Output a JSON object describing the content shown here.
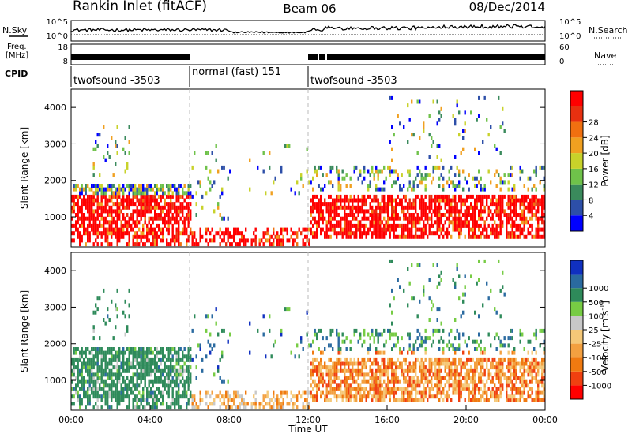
{
  "header": {
    "title": "Rankin Inlet (fitACF)",
    "beam": "Beam 06",
    "date": "08/Dec/2014"
  },
  "noise_panel": {
    "left_label": "N.Sky",
    "right_label": "N.Search",
    "ticks_left": [
      "10^5",
      "10^0"
    ],
    "ticks_right": [
      "10^5",
      "10^0"
    ]
  },
  "freq_panel": {
    "left_label_line1": "Freq.",
    "left_label_line2": "[MHz]",
    "right_label": "Nave",
    "ticks_left": [
      "18",
      "8"
    ],
    "ticks_right": [
      "60",
      "0"
    ]
  },
  "cpid_panel": {
    "label": "CPID",
    "modes": [
      {
        "text": "twofsound -3503",
        "start_hour": 0,
        "end_hour": 6
      },
      {
        "text": "normal (fast) 151",
        "start_hour": 6,
        "end_hour": 12
      },
      {
        "text": "twofsound -3503",
        "start_hour": 12,
        "end_hour": 24
      }
    ]
  },
  "x_axis": {
    "label": "Time UT",
    "ticks": [
      "00:00",
      "04:00",
      "08:00",
      "12:00",
      "16:00",
      "20:00",
      "00:00"
    ],
    "range_hours": [
      0,
      24
    ]
  },
  "y_axis": {
    "label": "Slant Range [km]",
    "ticks": [
      "1000",
      "2000",
      "3000",
      "4000"
    ],
    "range_km": [
      180,
      4500
    ]
  },
  "colors": {
    "power": [
      "#0000ff",
      "#2d4fa8",
      "#3a8a5c",
      "#6fc24a",
      "#c8d22a",
      "#f0a020",
      "#f07010",
      "#e83010",
      "#ff0000"
    ],
    "velocity": [
      "#ff0000",
      "#f04010",
      "#f07a10",
      "#f3a040",
      "#f5c878",
      "#c8c8c8",
      "#77cc44",
      "#2e8a5a",
      "#2a6aa0",
      "#1030c0"
    ]
  },
  "chart_data": [
    {
      "type": "heatmap",
      "title": "Power [dB]",
      "xlabel": "Time UT",
      "ylabel": "Slant Range [km]",
      "xlim_hours": [
        0,
        24
      ],
      "ylim_km": [
        180,
        4500
      ],
      "colorbar_label": "Power [dB]",
      "colorbar_ticks": [
        "4",
        "8",
        "12",
        "16",
        "20",
        "24",
        "28"
      ],
      "colorbar_levels": [
        0,
        4,
        8,
        12,
        16,
        20,
        24,
        28,
        32
      ]
    },
    {
      "type": "heatmap",
      "title": "Velocity [m s-1]",
      "xlabel": "Time UT",
      "ylabel": "Slant Range [km]",
      "xlim_hours": [
        0,
        24
      ],
      "ylim_km": [
        180,
        4500
      ],
      "colorbar_label": "Velocity [m s",
      "colorbar_label_sup": "-1",
      "colorbar_label_end": "]",
      "colorbar_ticks": [
        "1000",
        "500",
        "100",
        "25",
        "-25",
        "-100",
        "-500",
        "-1000"
      ]
    }
  ]
}
